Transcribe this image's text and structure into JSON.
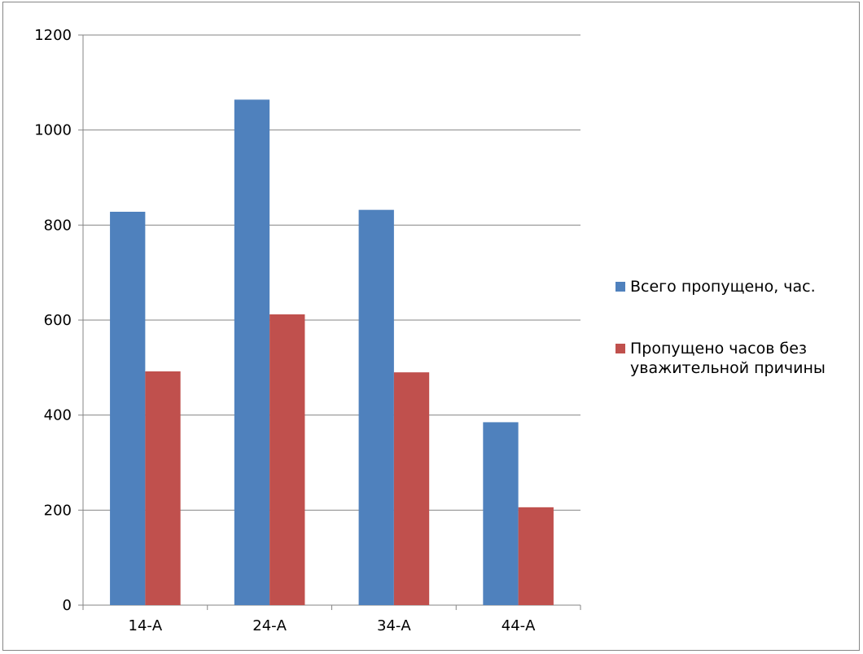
{
  "chart_data": {
    "type": "bar",
    "categories": [
      "14-А",
      "24-А",
      "34-А",
      "44-А"
    ],
    "series": [
      {
        "name": "Всего пропущено, час.",
        "values": [
          828,
          1064,
          832,
          385
        ],
        "color": "#4F81BD"
      },
      {
        "name": "Пропущено часов без уважительной причины",
        "legend_lines": [
          "Пропущено часов без",
          "уважительной причины"
        ],
        "values": [
          492,
          612,
          490,
          206
        ],
        "color": "#C0504D"
      }
    ],
    "title": "",
    "xlabel": "",
    "ylabel": "",
    "ylim": [
      0,
      1200
    ],
    "yticks": [
      0,
      200,
      400,
      600,
      800,
      1000,
      1200
    ],
    "grid": true,
    "legend_position": "right"
  }
}
